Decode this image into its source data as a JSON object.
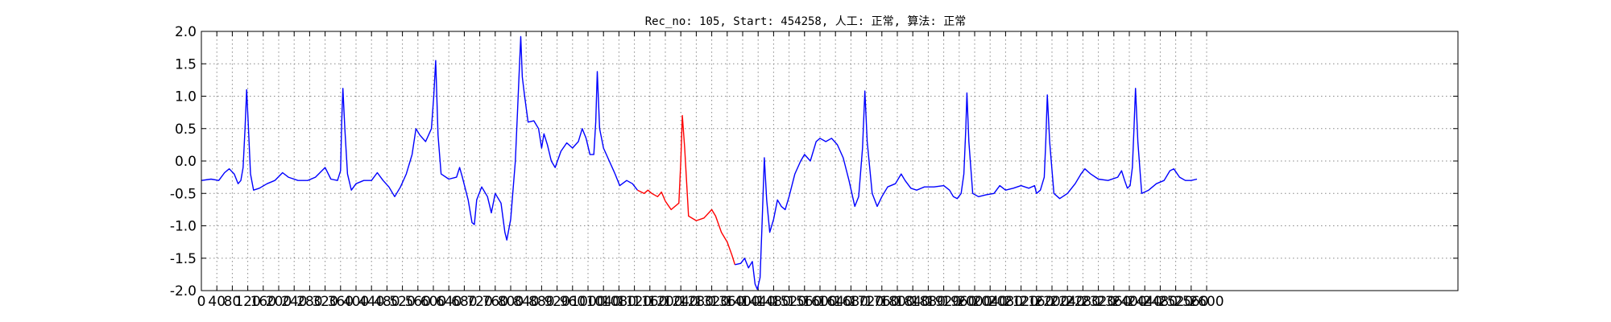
{
  "chart_data": {
    "type": "line",
    "title": "Rec_no: 105, Start: 454258, 人工: 正常, 算法: 正常",
    "xlabel": "",
    "ylabel": "",
    "xlim": [
      0,
      3250
    ],
    "ylim": [
      -2.0,
      2.0
    ],
    "grid": true,
    "y_ticks": [
      "2.0",
      "1.5",
      "1.0",
      "0.5",
      "0.0",
      "-0.5",
      "-1.0",
      "-1.5",
      "-2.0"
    ],
    "x_ticks": [
      0,
      40,
      80,
      120,
      160,
      200,
      240,
      280,
      320,
      360,
      400,
      440,
      480,
      520,
      560,
      600,
      640,
      680,
      720,
      760,
      800,
      840,
      880,
      920,
      960,
      1000,
      1040,
      1080,
      1120,
      1160,
      1200,
      1240,
      1280,
      1320,
      1360,
      1400,
      1440,
      1480,
      1520,
      1560,
      1600,
      1640,
      1680,
      1720,
      1760,
      1800,
      1840,
      1880,
      1920,
      1960,
      2000,
      2040,
      2080,
      2120,
      2160,
      2200,
      2240,
      2280,
      2320,
      2360,
      2400,
      2440,
      2480,
      2520,
      2560,
      2600
    ],
    "series": [
      {
        "color": "#0000ff",
        "segment": "before",
        "points": [
          [
            0,
            -0.3
          ],
          [
            25,
            -0.28
          ],
          [
            45,
            -0.3
          ],
          [
            60,
            -0.18
          ],
          [
            72,
            -0.12
          ],
          [
            85,
            -0.2
          ],
          [
            95,
            -0.35
          ],
          [
            102,
            -0.3
          ],
          [
            108,
            -0.1
          ],
          [
            113,
            0.5
          ],
          [
            117,
            1.1
          ],
          [
            121,
            0.6
          ],
          [
            127,
            -0.2
          ],
          [
            135,
            -0.45
          ],
          [
            150,
            -0.42
          ],
          [
            170,
            -0.35
          ],
          [
            190,
            -0.3
          ],
          [
            210,
            -0.18
          ],
          [
            225,
            -0.25
          ],
          [
            250,
            -0.3
          ],
          [
            275,
            -0.3
          ],
          [
            295,
            -0.25
          ],
          [
            320,
            -0.1
          ],
          [
            335,
            -0.28
          ],
          [
            352,
            -0.3
          ],
          [
            360,
            -0.15
          ],
          [
            363,
            0.6
          ],
          [
            366,
            1.12
          ],
          [
            371,
            0.5
          ],
          [
            378,
            -0.2
          ],
          [
            388,
            -0.45
          ],
          [
            400,
            -0.35
          ],
          [
            420,
            -0.3
          ],
          [
            440,
            -0.3
          ],
          [
            455,
            -0.18
          ],
          [
            470,
            -0.3
          ],
          [
            485,
            -0.4
          ],
          [
            500,
            -0.55
          ],
          [
            515,
            -0.4
          ],
          [
            530,
            -0.2
          ],
          [
            545,
            0.1
          ],
          [
            555,
            0.5
          ],
          [
            565,
            0.4
          ],
          [
            580,
            0.3
          ],
          [
            595,
            0.5
          ],
          [
            601,
            1.0
          ],
          [
            606,
            1.55
          ],
          [
            612,
            0.4
          ],
          [
            620,
            -0.2
          ],
          [
            640,
            -0.28
          ],
          [
            660,
            -0.25
          ],
          [
            668,
            -0.1
          ],
          [
            675,
            -0.25
          ],
          [
            690,
            -0.6
          ],
          [
            700,
            -0.95
          ],
          [
            706,
            -0.98
          ],
          [
            712,
            -0.6
          ],
          [
            725,
            -0.4
          ],
          [
            740,
            -0.55
          ],
          [
            750,
            -0.8
          ],
          [
            760,
            -0.5
          ],
          [
            775,
            -0.65
          ],
          [
            785,
            -1.1
          ],
          [
            790,
            -1.22
          ],
          [
            800,
            -0.9
          ],
          [
            812,
            0.0
          ],
          [
            818,
            0.8
          ],
          [
            823,
            1.5
          ],
          [
            826,
            1.92
          ],
          [
            830,
            1.3
          ],
          [
            836,
            1.0
          ],
          [
            845,
            0.6
          ],
          [
            860,
            0.62
          ],
          [
            872,
            0.5
          ],
          [
            880,
            0.2
          ],
          [
            886,
            0.42
          ],
          [
            895,
            0.25
          ],
          [
            905,
            0.0
          ],
          [
            915,
            -0.1
          ],
          [
            930,
            0.15
          ],
          [
            945,
            0.28
          ],
          [
            960,
            0.2
          ],
          [
            975,
            0.3
          ],
          [
            985,
            0.5
          ],
          [
            995,
            0.35
          ],
          [
            1005,
            0.1
          ],
          [
            1015,
            0.1
          ],
          [
            1020,
            0.6
          ],
          [
            1024,
            1.38
          ],
          [
            1030,
            0.5
          ],
          [
            1040,
            0.2
          ],
          [
            1055,
            0.0
          ],
          [
            1070,
            -0.2
          ],
          [
            1082,
            -0.38
          ],
          [
            1100,
            -0.3
          ],
          [
            1115,
            -0.35
          ],
          [
            1128,
            -0.45
          ]
        ]
      },
      {
        "color": "#ff0000",
        "segment": "middle",
        "points": [
          [
            1128,
            -0.45
          ],
          [
            1145,
            -0.5
          ],
          [
            1155,
            -0.45
          ],
          [
            1165,
            -0.5
          ],
          [
            1180,
            -0.55
          ],
          [
            1190,
            -0.48
          ],
          [
            1200,
            -0.62
          ],
          [
            1215,
            -0.75
          ],
          [
            1235,
            -0.65
          ],
          [
            1240,
            0.0
          ],
          [
            1244,
            0.7
          ],
          [
            1250,
            0.2
          ],
          [
            1260,
            -0.85
          ],
          [
            1280,
            -0.92
          ],
          [
            1300,
            -0.88
          ],
          [
            1320,
            -0.75
          ],
          [
            1330,
            -0.85
          ],
          [
            1345,
            -1.1
          ],
          [
            1360,
            -1.25
          ],
          [
            1372,
            -1.45
          ],
          [
            1380,
            -1.6
          ]
        ]
      },
      {
        "color": "#0000ff",
        "segment": "after",
        "points": [
          [
            1380,
            -1.6
          ],
          [
            1395,
            -1.58
          ],
          [
            1405,
            -1.5
          ],
          [
            1415,
            -1.65
          ],
          [
            1425,
            -1.55
          ],
          [
            1432,
            -1.9
          ],
          [
            1438,
            -1.98
          ],
          [
            1445,
            -1.8
          ],
          [
            1450,
            -1.0
          ],
          [
            1456,
            0.05
          ],
          [
            1462,
            -0.6
          ],
          [
            1470,
            -1.1
          ],
          [
            1480,
            -0.9
          ],
          [
            1490,
            -0.6
          ],
          [
            1500,
            -0.7
          ],
          [
            1510,
            -0.75
          ],
          [
            1520,
            -0.55
          ],
          [
            1535,
            -0.2
          ],
          [
            1550,
            0.0
          ],
          [
            1560,
            0.1
          ],
          [
            1575,
            0.0
          ],
          [
            1590,
            0.3
          ],
          [
            1600,
            0.35
          ],
          [
            1615,
            0.3
          ],
          [
            1630,
            0.35
          ],
          [
            1645,
            0.25
          ],
          [
            1660,
            0.05
          ],
          [
            1675,
            -0.3
          ],
          [
            1690,
            -0.7
          ],
          [
            1700,
            -0.55
          ],
          [
            1710,
            0.2
          ],
          [
            1716,
            1.08
          ],
          [
            1722,
            0.3
          ],
          [
            1735,
            -0.5
          ],
          [
            1748,
            -0.7
          ],
          [
            1760,
            -0.55
          ],
          [
            1775,
            -0.4
          ],
          [
            1795,
            -0.35
          ],
          [
            1810,
            -0.2
          ],
          [
            1820,
            -0.3
          ],
          [
            1835,
            -0.42
          ],
          [
            1850,
            -0.45
          ],
          [
            1870,
            -0.4
          ],
          [
            1895,
            -0.4
          ],
          [
            1920,
            -0.38
          ],
          [
            1935,
            -0.45
          ],
          [
            1945,
            -0.55
          ],
          [
            1955,
            -0.58
          ],
          [
            1965,
            -0.5
          ],
          [
            1972,
            -0.2
          ],
          [
            1977,
            0.5
          ],
          [
            1980,
            1.05
          ],
          [
            1985,
            0.3
          ],
          [
            1995,
            -0.5
          ],
          [
            2010,
            -0.55
          ],
          [
            2030,
            -0.52
          ],
          [
            2050,
            -0.5
          ],
          [
            2065,
            -0.38
          ],
          [
            2080,
            -0.45
          ],
          [
            2100,
            -0.42
          ],
          [
            2120,
            -0.38
          ],
          [
            2140,
            -0.42
          ],
          [
            2155,
            -0.38
          ],
          [
            2160,
            -0.5
          ],
          [
            2170,
            -0.45
          ],
          [
            2180,
            -0.25
          ],
          [
            2184,
            0.3
          ],
          [
            2188,
            1.02
          ],
          [
            2194,
            0.3
          ],
          [
            2205,
            -0.5
          ],
          [
            2220,
            -0.58
          ],
          [
            2240,
            -0.5
          ],
          [
            2260,
            -0.35
          ],
          [
            2275,
            -0.2
          ],
          [
            2285,
            -0.12
          ],
          [
            2300,
            -0.2
          ],
          [
            2320,
            -0.28
          ],
          [
            2345,
            -0.3
          ],
          [
            2370,
            -0.25
          ],
          [
            2380,
            -0.15
          ],
          [
            2388,
            -0.3
          ],
          [
            2395,
            -0.42
          ],
          [
            2402,
            -0.38
          ],
          [
            2408,
            -0.1
          ],
          [
            2412,
            0.5
          ],
          [
            2416,
            1.12
          ],
          [
            2422,
            0.3
          ],
          [
            2432,
            -0.5
          ],
          [
            2450,
            -0.45
          ],
          [
            2470,
            -0.35
          ],
          [
            2490,
            -0.3
          ],
          [
            2505,
            -0.15
          ],
          [
            2515,
            -0.12
          ],
          [
            2530,
            -0.25
          ],
          [
            2545,
            -0.3
          ],
          [
            2560,
            -0.3
          ],
          [
            2575,
            -0.28
          ]
        ]
      }
    ]
  }
}
